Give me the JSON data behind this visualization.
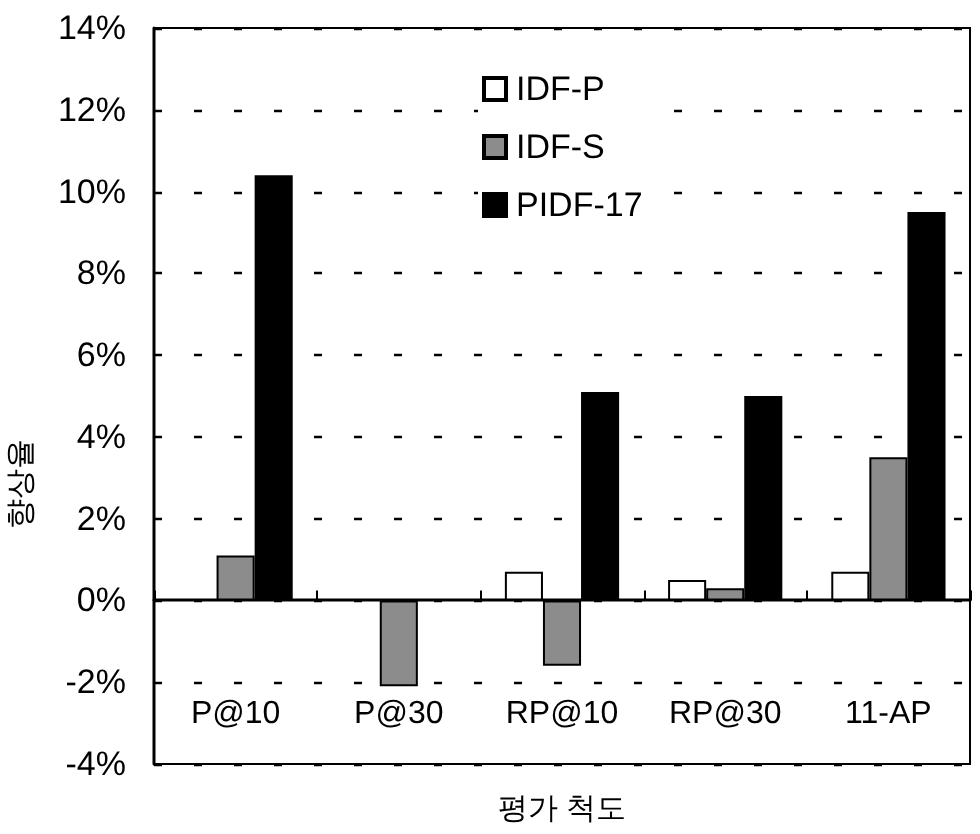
{
  "chart_data": {
    "type": "bar",
    "xlabel": "평가 척도",
    "ylabel": "향상율",
    "categories": [
      "P@10",
      "P@30",
      "RP@10",
      "RP@30",
      "11-AP"
    ],
    "series": [
      {
        "name": "IDF-P",
        "color": "#ffffff",
        "values": [
          null,
          null,
          0.7,
          0.5,
          0.7
        ]
      },
      {
        "name": "IDF-S",
        "color": "#8c8c8c",
        "values": [
          1.1,
          -2.1,
          -1.6,
          0.3,
          3.5
        ]
      },
      {
        "name": "PIDF-17",
        "color": "#000000",
        "values": [
          10.4,
          null,
          5.1,
          5.0,
          9.5
        ]
      }
    ],
    "ylim": [
      -4,
      14
    ],
    "yticks": [
      {
        "value": -4,
        "label": "-4%"
      },
      {
        "value": -2,
        "label": "-2%"
      },
      {
        "value": 0,
        "label": "0%"
      },
      {
        "value": 2,
        "label": "2%"
      },
      {
        "value": 4,
        "label": "4%"
      },
      {
        "value": 6,
        "label": "6%"
      },
      {
        "value": 8,
        "label": "8%"
      },
      {
        "value": 10,
        "label": "10%"
      },
      {
        "value": 12,
        "label": "12%"
      },
      {
        "value": 14,
        "label": "14%"
      }
    ],
    "grid": "y",
    "legend": "top"
  }
}
